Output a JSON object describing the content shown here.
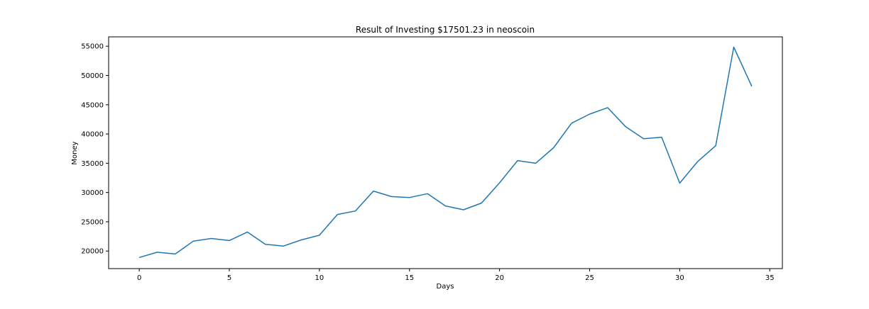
{
  "chart_data": {
    "type": "line",
    "title": "Result of Investing $17501.23 in neoscoin",
    "xlabel": "Days",
    "ylabel": "Money",
    "xlim": [
      -1.7,
      35.7
    ],
    "ylim": [
      17000,
      56600
    ],
    "xticks": [
      0,
      5,
      10,
      15,
      20,
      25,
      30,
      35
    ],
    "yticks": [
      20000,
      25000,
      30000,
      35000,
      40000,
      45000,
      50000,
      55000
    ],
    "grid": false,
    "legend": "none",
    "series": [
      {
        "color": "#1f77b4",
        "x": [
          0,
          1,
          2,
          3,
          4,
          5,
          6,
          7,
          8,
          9,
          10,
          11,
          12,
          13,
          14,
          15,
          16,
          17,
          18,
          19,
          20,
          21,
          22,
          23,
          24,
          25,
          26,
          27,
          28,
          29,
          30,
          31,
          32,
          33,
          34
        ],
        "y": [
          18900,
          19800,
          19500,
          21700,
          22150,
          21800,
          23250,
          21150,
          20850,
          21900,
          22700,
          26250,
          26850,
          30250,
          29300,
          29150,
          29800,
          27700,
          27050,
          28200,
          31650,
          35450,
          35000,
          37650,
          41850,
          43400,
          44500,
          41250,
          39200,
          39450,
          31600,
          35300,
          38000,
          54850,
          48150
        ]
      }
    ]
  }
}
